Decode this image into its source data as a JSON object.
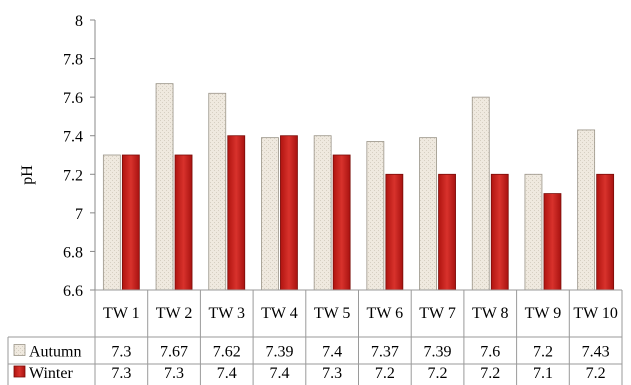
{
  "chart_data": {
    "type": "bar",
    "ylabel": "pH",
    "ylim": [
      6.6,
      8
    ],
    "yticks": [
      "6.6",
      "6.8",
      "7",
      "7.2",
      "7.4",
      "7.6",
      "7.8",
      "8"
    ],
    "categories": [
      "TW 1",
      "TW 2",
      "TW 3",
      "TW 4",
      "TW 5",
      "TW 6",
      "TW 7",
      "TW 8",
      "TW 9",
      "TW 10"
    ],
    "series": [
      {
        "name": "Autumn",
        "values": [
          7.3,
          7.67,
          7.62,
          7.39,
          7.4,
          7.37,
          7.39,
          7.6,
          7.2,
          7.43
        ],
        "labels": [
          "7.3",
          "7.67",
          "7.62",
          "7.39",
          "7.4",
          "7.37",
          "7.39",
          "7.6",
          "7.2",
          "7.43"
        ],
        "color": "#ede7dc"
      },
      {
        "name": "Winter",
        "values": [
          7.3,
          7.3,
          7.4,
          7.4,
          7.3,
          7.2,
          7.2,
          7.2,
          7.1,
          7.2
        ],
        "labels": [
          "7.3",
          "7.3",
          "7.4",
          "7.4",
          "7.3",
          "7.2",
          "7.2",
          "7.2",
          "7.1",
          "7.2"
        ],
        "color": "#c8201c"
      }
    ],
    "grid": false,
    "legend": "data-table"
  }
}
